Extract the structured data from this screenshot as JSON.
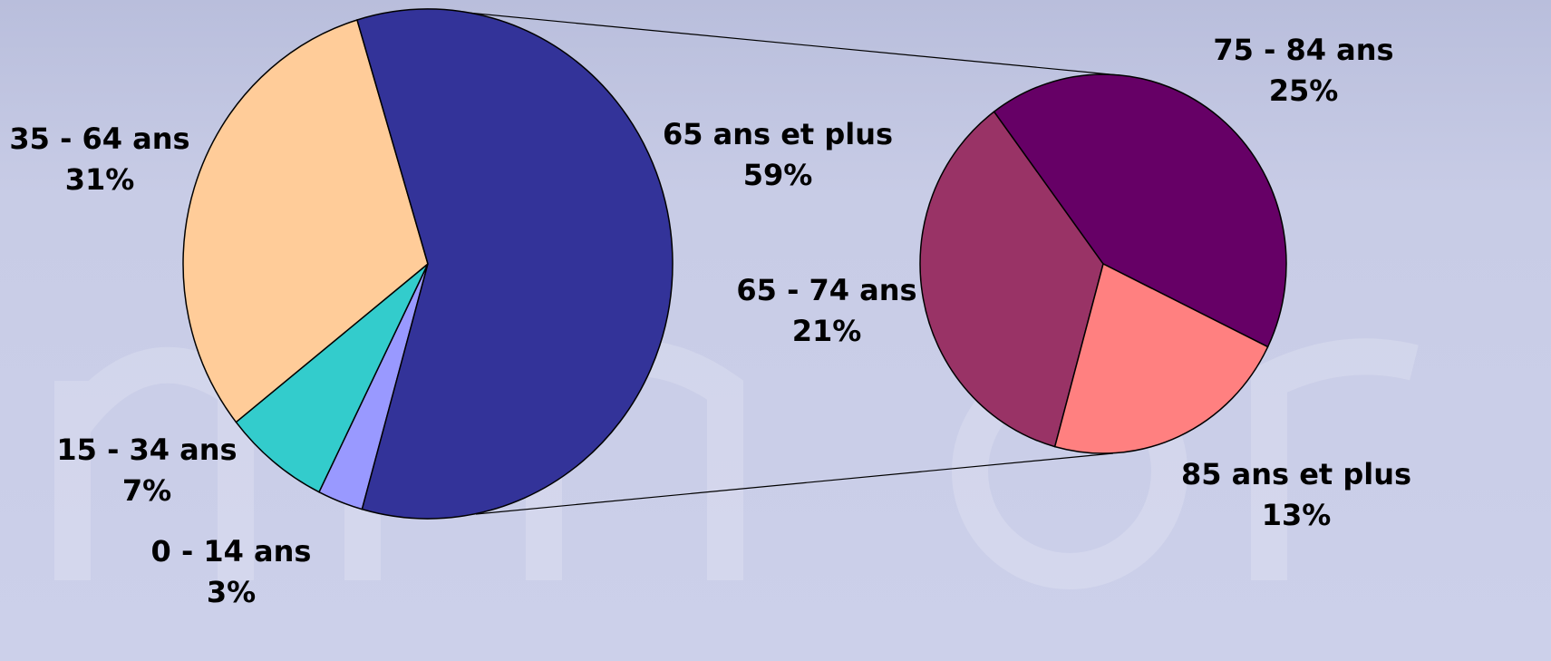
{
  "chart_data": [
    {
      "type": "pie",
      "categories": [
        "0 - 14 ans",
        "15 - 34 ans",
        "35 - 64 ans",
        "65 ans et plus"
      ],
      "values": [
        3,
        7,
        31,
        59
      ],
      "value_labels": [
        "3%",
        "7%",
        "31%",
        "59%"
      ],
      "colors": [
        "#9999ff",
        "#33cccc",
        "#ffcc99",
        "#333399"
      ]
    },
    {
      "type": "pie",
      "categories": [
        "65 - 74 ans",
        "75 - 84 ans",
        "85 ans et plus"
      ],
      "values": [
        21,
        25,
        13
      ],
      "value_labels": [
        "21%",
        "25%",
        "13%"
      ],
      "colors": [
        "#993366",
        "#660066",
        "#ff8080"
      ]
    }
  ]
}
